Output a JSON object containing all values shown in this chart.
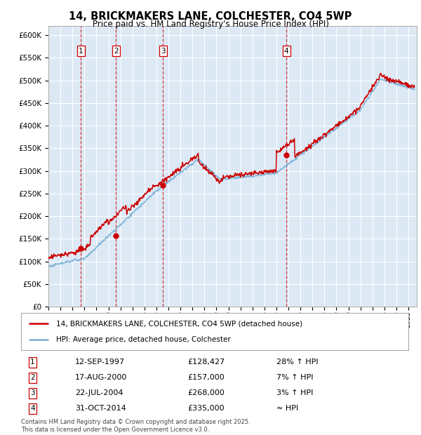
{
  "title": "14, BRICKMAKERS LANE, COLCHESTER, CO4 5WP",
  "subtitle": "Price paid vs. HM Land Registry's House Price Index (HPI)",
  "plot_bg_color": "#dce9f5",
  "ylim": [
    0,
    620000
  ],
  "yticks": [
    0,
    50000,
    100000,
    150000,
    200000,
    250000,
    300000,
    350000,
    400000,
    450000,
    500000,
    550000,
    600000
  ],
  "ytick_labels": [
    "£0",
    "£50K",
    "£100K",
    "£150K",
    "£200K",
    "£250K",
    "£300K",
    "£350K",
    "£400K",
    "£450K",
    "£500K",
    "£550K",
    "£600K"
  ],
  "sale_dates_num": [
    1997.7,
    2000.63,
    2004.55,
    2014.83
  ],
  "sale_prices": [
    128427,
    157000,
    268000,
    335000
  ],
  "sale_labels": [
    "1",
    "2",
    "3",
    "4"
  ],
  "legend_line1": "14, BRICKMAKERS LANE, COLCHESTER, CO4 5WP (detached house)",
  "legend_line2": "HPI: Average price, detached house, Colchester",
  "table_entries": [
    {
      "label": "1",
      "date": "12-SEP-1997",
      "price": "£128,427",
      "hpi": "28% ↑ HPI"
    },
    {
      "label": "2",
      "date": "17-AUG-2000",
      "price": "£157,000",
      "hpi": "7% ↑ HPI"
    },
    {
      "label": "3",
      "date": "22-JUL-2004",
      "price": "£268,000",
      "hpi": "3% ↑ HPI"
    },
    {
      "label": "4",
      "date": "31-OCT-2014",
      "price": "£335,000",
      "hpi": "≈ HPI"
    }
  ],
  "footnote": "Contains HM Land Registry data © Crown copyright and database right 2025.\nThis data is licensed under the Open Government Licence v3.0.",
  "red_color": "#cc0000",
  "blue_color": "#7aafd4",
  "dot_color": "#cc0000",
  "xlim_start": 1995.0,
  "xlim_end": 2025.7
}
